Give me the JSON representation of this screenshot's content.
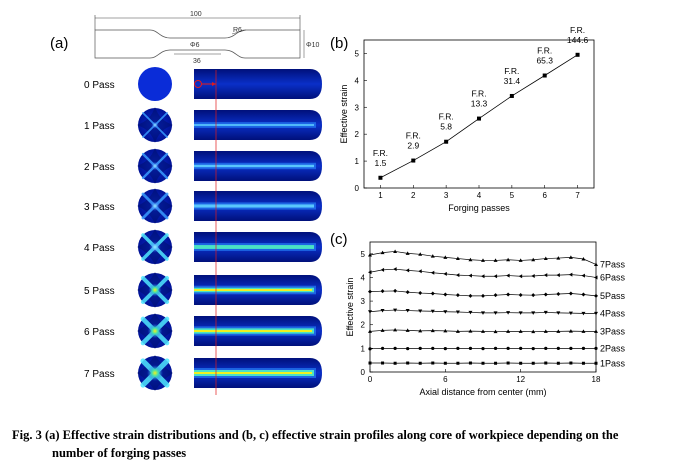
{
  "panels": {
    "a": "(a)",
    "b": "(b)",
    "c": "(c)"
  },
  "specimen": {
    "length": "100",
    "radius": "R6",
    "gauge_dia": "Φ6",
    "gauge_len": "36",
    "grip_dia": "Φ10"
  },
  "passes": [
    "0 Pass",
    "1 Pass",
    "2 Pass",
    "3 Pass",
    "4 Pass",
    "5 Pass",
    "6 Pass",
    "7 Pass"
  ],
  "colors": {
    "jet_dark": "#00008f",
    "jet_blue": "#0a3fd8",
    "jet_cyan": "#3cd8ff",
    "jet_yellow": "#f0f020",
    "marker_red": "#e21a1a"
  },
  "chart_data": [
    {
      "type": "line",
      "xlabel": "Forging passes",
      "ylabel": "Effective strain",
      "xlim": [
        0.5,
        7.5
      ],
      "ylim": [
        0,
        5.5
      ],
      "xticks": [
        1,
        2,
        3,
        4,
        5,
        6,
        7
      ],
      "yticks": [
        0,
        1,
        2,
        3,
        4,
        5
      ],
      "x": [
        1,
        2,
        3,
        4,
        5,
        6,
        7
      ],
      "y": [
        0.38,
        1.02,
        1.72,
        2.58,
        3.42,
        4.18,
        4.95
      ],
      "annotations": [
        {
          "x": 1,
          "lines": [
            "F.R.",
            "1.5"
          ]
        },
        {
          "x": 2,
          "lines": [
            "F.R.",
            "2.9"
          ]
        },
        {
          "x": 3,
          "lines": [
            "F.R.",
            "5.8"
          ]
        },
        {
          "x": 4,
          "lines": [
            "F.R.",
            "13.3"
          ]
        },
        {
          "x": 5,
          "lines": [
            "F.R.",
            "31.4"
          ]
        },
        {
          "x": 6,
          "lines": [
            "F.R.",
            "65.3"
          ]
        },
        {
          "x": 7,
          "lines": [
            "F.R.",
            "144.6"
          ]
        }
      ]
    },
    {
      "type": "line",
      "xlabel": "Axial distance from center (mm)",
      "ylabel": "Effective strain",
      "xlim": [
        0,
        18
      ],
      "ylim": [
        0,
        5.5
      ],
      "xticks": [
        0,
        6,
        12,
        18
      ],
      "yticks": [
        0,
        1,
        2,
        3,
        4,
        5
      ],
      "x": [
        0,
        1,
        2,
        3,
        4,
        5,
        6,
        7,
        8,
        9,
        10,
        11,
        12,
        13,
        14,
        15,
        16,
        17,
        18
      ],
      "series": [
        {
          "name": "1Pass",
          "values": [
            0.38,
            0.38,
            0.37,
            0.38,
            0.37,
            0.38,
            0.37,
            0.37,
            0.38,
            0.37,
            0.37,
            0.38,
            0.37,
            0.37,
            0.38,
            0.37,
            0.38,
            0.37,
            0.37
          ]
        },
        {
          "name": "2Pass",
          "values": [
            0.98,
            1.0,
            1.0,
            0.99,
            1.0,
            1.0,
            0.99,
            1.0,
            1.0,
            0.99,
            1.0,
            1.0,
            1.0,
            0.99,
            1.0,
            1.0,
            1.0,
            1.0,
            1.0
          ]
        },
        {
          "name": "3Pass",
          "values": [
            1.72,
            1.76,
            1.78,
            1.76,
            1.74,
            1.75,
            1.74,
            1.72,
            1.73,
            1.72,
            1.71,
            1.72,
            1.72,
            1.71,
            1.72,
            1.72,
            1.73,
            1.72,
            1.72
          ]
        },
        {
          "name": "4Pass",
          "values": [
            2.55,
            2.6,
            2.62,
            2.6,
            2.58,
            2.57,
            2.55,
            2.54,
            2.52,
            2.5,
            2.5,
            2.51,
            2.5,
            2.5,
            2.52,
            2.5,
            2.49,
            2.48,
            2.48
          ]
        },
        {
          "name": "5Pass",
          "values": [
            3.4,
            3.42,
            3.43,
            3.38,
            3.34,
            3.32,
            3.28,
            3.25,
            3.22,
            3.22,
            3.25,
            3.28,
            3.26,
            3.25,
            3.28,
            3.3,
            3.32,
            3.28,
            3.22
          ]
        },
        {
          "name": "6Pass",
          "values": [
            4.22,
            4.32,
            4.35,
            4.3,
            4.26,
            4.2,
            4.15,
            4.1,
            4.08,
            4.05,
            4.05,
            4.08,
            4.05,
            4.06,
            4.1,
            4.1,
            4.12,
            4.08,
            4.0
          ]
        },
        {
          "name": "7Pass",
          "values": [
            4.95,
            5.05,
            5.1,
            5.02,
            4.98,
            4.9,
            4.85,
            4.8,
            4.75,
            4.72,
            4.72,
            4.75,
            4.72,
            4.75,
            4.8,
            4.82,
            4.85,
            4.78,
            4.55
          ]
        }
      ]
    }
  ],
  "caption": {
    "line1": "Fig. 3 (a) Effective strain distributions and (b, c) effective strain profiles along core of workpiece depending on the",
    "line2": "number of forging passes"
  }
}
